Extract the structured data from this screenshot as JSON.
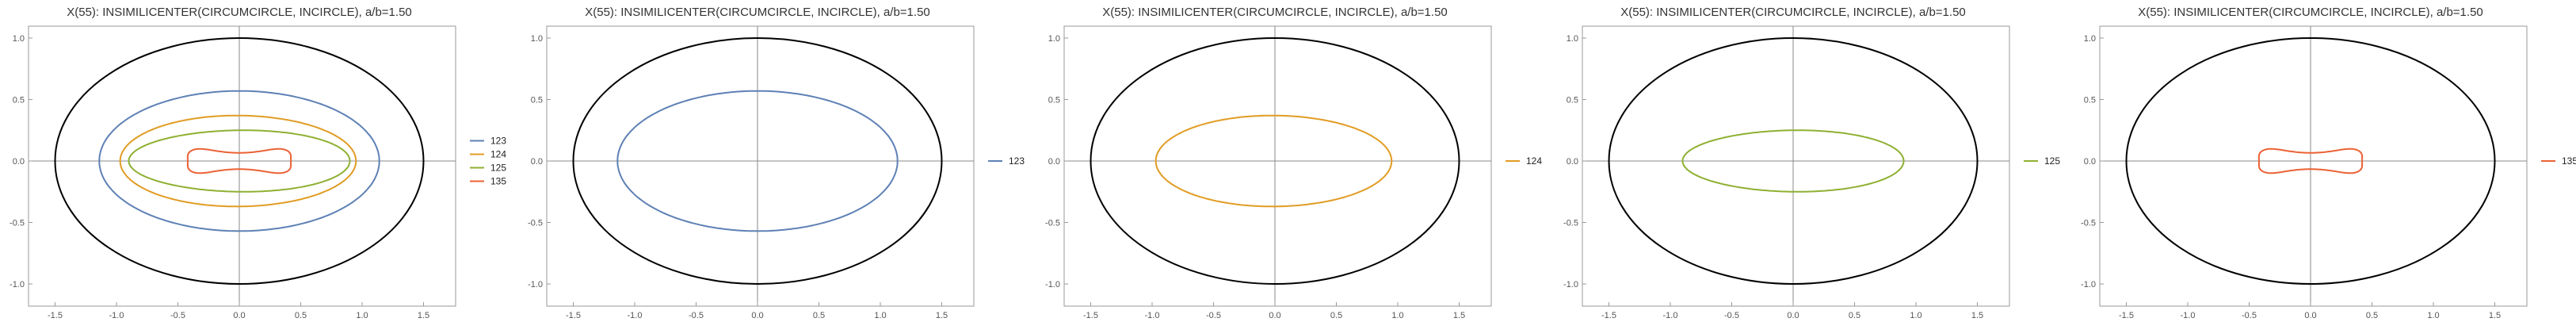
{
  "chart_data": [
    {
      "type": "line",
      "title": "X(55): INSIMILICENTER(CIRCUMCIRCLE, INCIRCLE), a/b=1.50",
      "xlim": [
        -1.7,
        1.7
      ],
      "ylim": [
        -1.1,
        1.1
      ],
      "xticks": [
        "-1.5",
        "-1.0",
        "-0.5",
        "0.0",
        "0.5",
        "1.0",
        "1.5"
      ],
      "yticks": [
        "-1.0",
        "-0.5",
        "0.0",
        "0.5",
        "1.0"
      ],
      "reference": {
        "name": "circumellipse",
        "color": "#000000",
        "semi_axes": [
          1.5,
          1.0
        ]
      },
      "series": [
        {
          "name": "123",
          "color": "#5E81B5",
          "shape": "ellipse",
          "semi_axes": [
            1.14,
            0.57
          ]
        },
        {
          "name": "124",
          "color": "#E19C24",
          "shape": "egg",
          "x_range": [
            -0.97,
            0.95
          ],
          "y_half": 0.37
        },
        {
          "name": "125",
          "color": "#8FB032",
          "shape": "egg",
          "x_range": [
            -0.9,
            0.9
          ],
          "y_half": 0.25
        },
        {
          "name": "135",
          "color": "#EB6235",
          "shape": "hourglass",
          "x_range": [
            -0.42,
            0.42
          ],
          "y_half": 0.13
        }
      ],
      "legend": [
        "123",
        "124",
        "125",
        "135"
      ]
    },
    {
      "type": "line",
      "title": "X(55): INSIMILICENTER(CIRCUMCIRCLE, INCIRCLE), a/b=1.50",
      "xlim": [
        -1.7,
        1.7
      ],
      "ylim": [
        -1.1,
        1.1
      ],
      "xticks": [
        "-1.5",
        "-1.0",
        "-0.5",
        "0.0",
        "0.5",
        "1.0",
        "1.5"
      ],
      "yticks": [
        "-1.0",
        "-0.5",
        "0.0",
        "0.5",
        "1.0"
      ],
      "reference": {
        "name": "circumellipse",
        "color": "#000000",
        "semi_axes": [
          1.5,
          1.0
        ]
      },
      "series": [
        {
          "name": "123",
          "color": "#5E81B5",
          "shape": "ellipse",
          "semi_axes": [
            1.14,
            0.57
          ]
        }
      ],
      "legend": [
        "123"
      ]
    },
    {
      "type": "line",
      "title": "X(55): INSIMILICENTER(CIRCUMCIRCLE, INCIRCLE), a/b=1.50",
      "xlim": [
        -1.7,
        1.7
      ],
      "ylim": [
        -1.1,
        1.1
      ],
      "xticks": [
        "-1.5",
        "-1.0",
        "-0.5",
        "0.0",
        "0.5",
        "1.0",
        "1.5"
      ],
      "yticks": [
        "-1.0",
        "-0.5",
        "0.0",
        "0.5",
        "1.0"
      ],
      "reference": {
        "name": "circumellipse",
        "color": "#000000",
        "semi_axes": [
          1.5,
          1.0
        ]
      },
      "series": [
        {
          "name": "124",
          "color": "#E19C24",
          "shape": "egg",
          "x_range": [
            -0.97,
            0.95
          ],
          "y_half": 0.37
        }
      ],
      "legend": [
        "124"
      ]
    },
    {
      "type": "line",
      "title": "X(55): INSIMILICENTER(CIRCUMCIRCLE, INCIRCLE), a/b=1.50",
      "xlim": [
        -1.7,
        1.7
      ],
      "ylim": [
        -1.1,
        1.1
      ],
      "xticks": [
        "-1.5",
        "-1.0",
        "-0.5",
        "0.0",
        "0.5",
        "1.0",
        "1.5"
      ],
      "yticks": [
        "-1.0",
        "-0.5",
        "0.0",
        "0.5",
        "1.0"
      ],
      "reference": {
        "name": "circumellipse",
        "color": "#000000",
        "semi_axes": [
          1.5,
          1.0
        ]
      },
      "series": [
        {
          "name": "125",
          "color": "#8FB032",
          "shape": "egg",
          "x_range": [
            -0.9,
            0.9
          ],
          "y_half": 0.25
        }
      ],
      "legend": [
        "125"
      ]
    },
    {
      "type": "line",
      "title": "X(55): INSIMILICENTER(CIRCUMCIRCLE, INCIRCLE), a/b=1.50",
      "xlim": [
        -1.7,
        1.7
      ],
      "ylim": [
        -1.1,
        1.1
      ],
      "xticks": [
        "-1.5",
        "-1.0",
        "-0.5",
        "0.0",
        "0.5",
        "1.0",
        "1.5"
      ],
      "yticks": [
        "-1.0",
        "-0.5",
        "0.0",
        "0.5",
        "1.0"
      ],
      "reference": {
        "name": "circumellipse",
        "color": "#000000",
        "semi_axes": [
          1.5,
          1.0
        ]
      },
      "series": [
        {
          "name": "135",
          "color": "#EB6235",
          "shape": "hourglass",
          "x_range": [
            -0.42,
            0.42
          ],
          "y_half": 0.13
        }
      ],
      "legend": [
        "135"
      ]
    }
  ]
}
